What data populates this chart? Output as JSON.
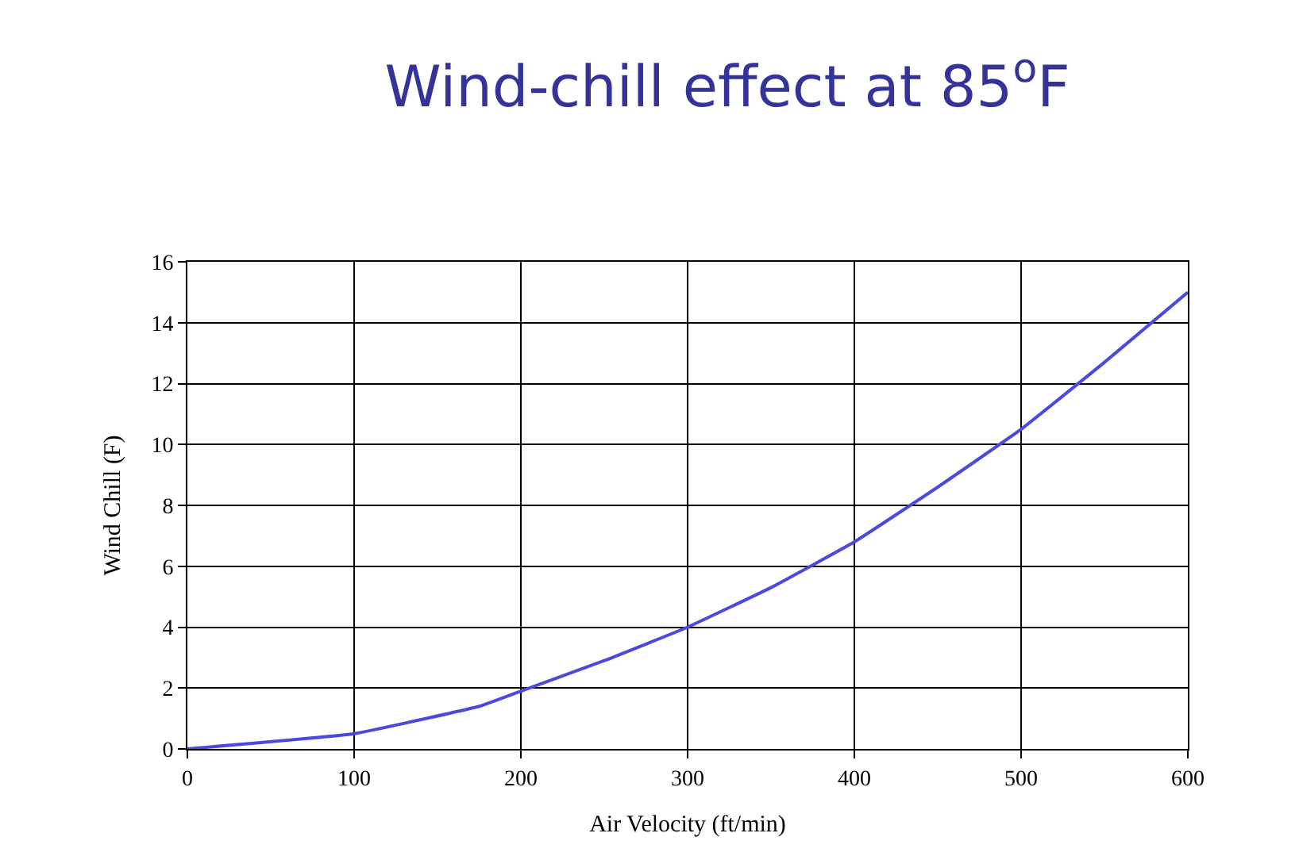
{
  "chart_data": {
    "type": "line",
    "title": "Wind-chill effect at 85$^{o}$F",
    "xlabel": "Air Velocity (ft/min)",
    "ylabel": "Wind Chill (F)",
    "x": [
      0,
      100,
      175,
      200,
      250,
      300,
      350,
      400,
      450,
      500,
      550,
      600
    ],
    "series": [
      {
        "color": "#4a4ae0",
        "values": [
          0,
          0.5,
          1.4,
          1.9,
          2.9,
          4.0,
          5.3,
          6.8,
          8.6,
          10.5,
          12.7,
          15.0
        ]
      }
    ],
    "xlim": [
      0,
      600
    ],
    "xticks": [
      0,
      100,
      200,
      300,
      400,
      500,
      600
    ],
    "ylim": [
      0,
      16
    ],
    "yticks": [
      0,
      2,
      4,
      6,
      8,
      10,
      12,
      14,
      16
    ],
    "grid": true,
    "marker": "none",
    "line_style": "solid"
  }
}
